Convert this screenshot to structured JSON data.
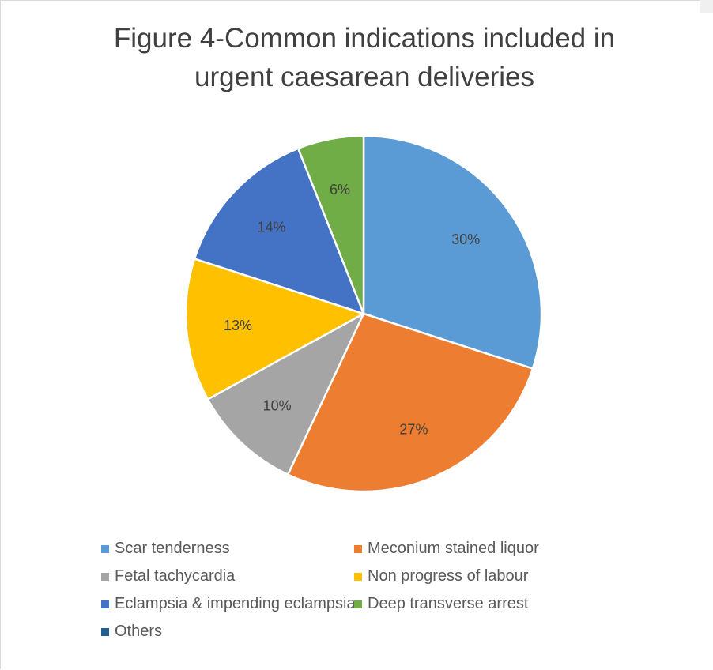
{
  "chart_data": {
    "type": "pie",
    "title": "Figure 4-Common indications included in urgent caesarean deliveries",
    "title_lines": [
      "Figure 4-Common indications included in",
      "urgent caesarean deliveries"
    ],
    "legend_position": "bottom",
    "slices": [
      {
        "label": "Scar tenderness",
        "value": 30,
        "data_label": "30%",
        "color": "#5b9bd5"
      },
      {
        "label": "Meconium stained liquor",
        "value": 27,
        "data_label": "27%",
        "color": "#ed7d31"
      },
      {
        "label": "Fetal tachycardia",
        "value": 10,
        "data_label": "10%",
        "color": "#a5a5a5"
      },
      {
        "label": "Non progress of labour",
        "value": 13,
        "data_label": "13%",
        "color": "#ffc000"
      },
      {
        "label": "Eclampsia & impending eclampsia",
        "value": 14,
        "data_label": "14%",
        "color": "#4472c4"
      },
      {
        "label": "Deep transverse arrest",
        "value": 6,
        "data_label": "6%",
        "color": "#70ad47"
      },
      {
        "label": "Others",
        "value": 0,
        "data_label": "",
        "color": "#255e91"
      }
    ]
  }
}
